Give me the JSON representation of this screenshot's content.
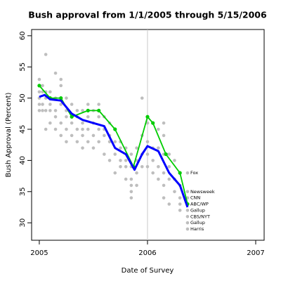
{
  "chart_data": {
    "type": "scatter",
    "title": "Bush approval from 1/1/2005 through 5/15/2006",
    "x_label": "Date of Survey",
    "y_label": "Bush Approval (Percent)",
    "xlim": [
      2004.929,
      2007.078
    ],
    "ylim": [
      27.2,
      61.0
    ],
    "xticks": [
      2005,
      2006,
      2007
    ],
    "yticks": [
      30,
      35,
      40,
      45,
      50,
      55,
      60
    ],
    "vline": 2006,
    "vline_color": "#c8c8c8",
    "series": [
      {
        "kind": "points",
        "color": "#bebebe",
        "x": [
          2005.0,
          2005.0,
          2005.0,
          2005.0,
          2005.0,
          2005.0,
          2005.03,
          2005.03,
          2005.03,
          2005.03,
          2005.06,
          2005.06,
          2005.06,
          2005.06,
          2005.06,
          2005.1,
          2005.1,
          2005.1,
          2005.1,
          2005.15,
          2005.15,
          2005.15,
          2005.15,
          2005.15,
          2005.2,
          2005.2,
          2005.2,
          2005.2,
          2005.2,
          2005.25,
          2005.25,
          2005.25,
          2005.25,
          2005.25,
          2005.3,
          2005.3,
          2005.3,
          2005.3,
          2005.35,
          2005.35,
          2005.35,
          2005.35,
          2005.4,
          2005.4,
          2005.4,
          2005.4,
          2005.4,
          2005.45,
          2005.45,
          2005.45,
          2005.45,
          2005.5,
          2005.5,
          2005.5,
          2005.5,
          2005.55,
          2005.55,
          2005.55,
          2005.55,
          2005.6,
          2005.6,
          2005.6,
          2005.6,
          2005.65,
          2005.65,
          2005.65,
          2005.65,
          2005.7,
          2005.7,
          2005.7,
          2005.7,
          2005.75,
          2005.75,
          2005.75,
          2005.75,
          2005.8,
          2005.8,
          2005.8,
          2005.8,
          2005.85,
          2005.85,
          2005.85,
          2005.85,
          2005.85,
          2005.85,
          2005.9,
          2005.9,
          2005.9,
          2005.9,
          2005.95,
          2005.95,
          2005.95,
          2005.95,
          2006.0,
          2006.0,
          2006.0,
          2006.0,
          2006.05,
          2006.05,
          2006.05,
          2006.05,
          2006.1,
          2006.1,
          2006.1,
          2006.1,
          2006.15,
          2006.15,
          2006.15,
          2006.15,
          2006.15,
          2006.15,
          2006.2,
          2006.2,
          2006.2,
          2006.2,
          2006.25,
          2006.25,
          2006.25,
          2006.3,
          2006.3,
          2006.3,
          2006.3
        ],
        "values": [
          53,
          52,
          51,
          50,
          49,
          48,
          52,
          51,
          49,
          48,
          57,
          51,
          50,
          48,
          45,
          51,
          49,
          48,
          46,
          54,
          50,
          48,
          47,
          45,
          53,
          52,
          49,
          46,
          44,
          50,
          48,
          47,
          45,
          43,
          49,
          47,
          46,
          44,
          48,
          47,
          45,
          43,
          48,
          46,
          45,
          44,
          42,
          49,
          47,
          45,
          43,
          48,
          46,
          44,
          42,
          49,
          47,
          45,
          43,
          47,
          45,
          44,
          41,
          46,
          44,
          43,
          40,
          45,
          43,
          41,
          38,
          43,
          42,
          40,
          39,
          42,
          40,
          39,
          37,
          41,
          39,
          37,
          36,
          35,
          34,
          42,
          40,
          38,
          36,
          50,
          44,
          41,
          39,
          46,
          43,
          41,
          39,
          46,
          42,
          40,
          38,
          45,
          42,
          39,
          37,
          46,
          44,
          41,
          38,
          36,
          34,
          41,
          39,
          37,
          33,
          40,
          37,
          35,
          36,
          34,
          33,
          32
        ]
      },
      {
        "kind": "labeled",
        "color": "#bebebe",
        "x": [
          2006.37,
          2006.37,
          2006.37,
          2006.37,
          2006.37,
          2006.37,
          2006.37,
          2006.37
        ],
        "values": [
          38,
          35,
          34,
          33,
          32,
          31,
          30,
          29
        ],
        "labels": [
          "Fox",
          "Newsweek",
          "CNN",
          "ABC/WP",
          "Gallup",
          "CBS/NYT",
          "Gallup",
          "Harris"
        ]
      },
      {
        "kind": "line-points",
        "color": "#00cc00",
        "x": [
          2005.0,
          2005.1,
          2005.2,
          2005.3,
          2005.45,
          2005.55,
          2005.7,
          2005.87,
          2006.0,
          2006.05,
          2006.17,
          2006.3,
          2006.37
        ],
        "values": [
          52,
          50,
          50,
          47,
          48,
          48,
          45,
          39,
          47,
          46,
          41,
          38,
          33
        ]
      },
      {
        "kind": "line",
        "color": "#0000ff",
        "x": [
          2005.0,
          2005.05,
          2005.1,
          2005.2,
          2005.3,
          2005.4,
          2005.5,
          2005.6,
          2005.7,
          2005.8,
          2005.88,
          2005.95,
          2006.0,
          2006.1,
          2006.2,
          2006.3,
          2006.37
        ],
        "values": [
          50.2,
          50.5,
          49.8,
          49.6,
          47.5,
          46.5,
          46,
          45.5,
          42,
          41,
          38.5,
          41,
          42.3,
          41.5,
          38,
          36,
          32.5
        ]
      }
    ]
  }
}
